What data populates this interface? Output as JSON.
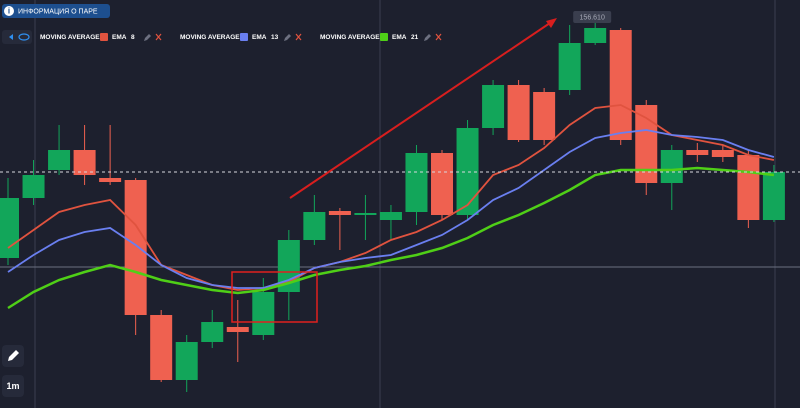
{
  "header": {
    "pair_info": "ИНФОРМАЦИЯ О ПАРЕ"
  },
  "toolbar": {
    "timeframe": "1m"
  },
  "chart_data": {
    "type": "candlestick",
    "ylim": [
      156.22,
      156.628
    ],
    "up_color": "#12a65a",
    "down_color": "#ef6150",
    "price_label": "156.610",
    "series": [
      {
        "open": [
          156.37,
          156.43,
          156.458,
          156.478,
          156.45,
          156.448,
          156.313,
          156.248,
          156.286,
          156.301,
          156.293,
          156.336,
          156.388,
          156.417,
          156.413,
          156.408,
          156.416,
          156.475,
          156.413,
          156.5,
          156.543,
          156.536,
          156.538,
          156.585,
          156.598,
          156.523,
          156.445,
          156.478,
          156.478,
          156.473,
          156.408
        ],
        "close": [
          156.43,
          156.453,
          156.478,
          156.453,
          156.446,
          156.313,
          156.248,
          156.286,
          156.306,
          156.296,
          156.336,
          156.388,
          156.416,
          156.413,
          156.415,
          156.416,
          156.475,
          156.413,
          156.5,
          156.543,
          156.488,
          156.488,
          156.585,
          156.6,
          156.488,
          156.445,
          156.478,
          156.473,
          156.471,
          156.408,
          156.456
        ],
        "high": [
          156.45,
          156.468,
          156.503,
          156.503,
          156.503,
          156.45,
          156.318,
          156.293,
          156.318,
          156.328,
          156.35,
          156.398,
          156.433,
          156.42,
          156.433,
          156.423,
          156.483,
          156.478,
          156.508,
          156.548,
          156.548,
          156.54,
          156.603,
          156.61,
          156.6,
          156.528,
          156.483,
          156.485,
          156.483,
          156.478,
          156.463
        ],
        "low": [
          156.363,
          156.423,
          156.453,
          156.443,
          156.443,
          156.293,
          156.246,
          156.236,
          156.28,
          156.266,
          156.288,
          156.308,
          156.383,
          156.378,
          156.388,
          156.388,
          156.403,
          156.408,
          156.408,
          156.493,
          156.486,
          156.483,
          156.533,
          156.583,
          156.483,
          156.433,
          156.418,
          156.466,
          156.466,
          156.4,
          156.406
        ]
      }
    ],
    "lines": [
      {
        "name": "MOVING AVERAGE",
        "kind": "EMA",
        "period": 8,
        "color": "#e0533f",
        "values": [
          156.38,
          156.398,
          156.416,
          156.423,
          156.428,
          156.403,
          156.363,
          156.353,
          156.343,
          156.338,
          156.34,
          156.346,
          156.36,
          156.366,
          156.375,
          156.388,
          156.396,
          156.408,
          156.423,
          156.453,
          156.463,
          156.48,
          156.503,
          156.52,
          156.523,
          156.51,
          156.493,
          156.488,
          156.483,
          156.473,
          156.468
        ]
      },
      {
        "name": "MOVING AVERAGE",
        "kind": "EMA",
        "period": 13,
        "color": "#6a7ff0",
        "values": [
          156.356,
          156.373,
          156.388,
          156.396,
          156.4,
          156.383,
          156.363,
          156.35,
          156.343,
          156.34,
          156.34,
          156.348,
          156.36,
          156.366,
          156.37,
          156.373,
          156.383,
          156.393,
          156.408,
          156.428,
          156.44,
          156.458,
          156.476,
          156.49,
          156.495,
          156.498,
          156.493,
          156.491,
          156.488,
          156.478,
          156.471
        ]
      },
      {
        "name": "MOVING AVERAGE",
        "kind": "EMA",
        "period": 21,
        "color": "#4fcf17",
        "values": [
          156.32,
          156.336,
          156.348,
          156.356,
          156.363,
          156.356,
          156.348,
          156.343,
          156.338,
          156.335,
          156.338,
          156.345,
          156.353,
          156.358,
          156.362,
          156.368,
          156.373,
          156.38,
          156.39,
          156.403,
          156.413,
          156.425,
          156.438,
          156.453,
          156.458,
          156.458,
          156.458,
          156.46,
          156.458,
          156.456,
          156.453
        ]
      }
    ]
  }
}
